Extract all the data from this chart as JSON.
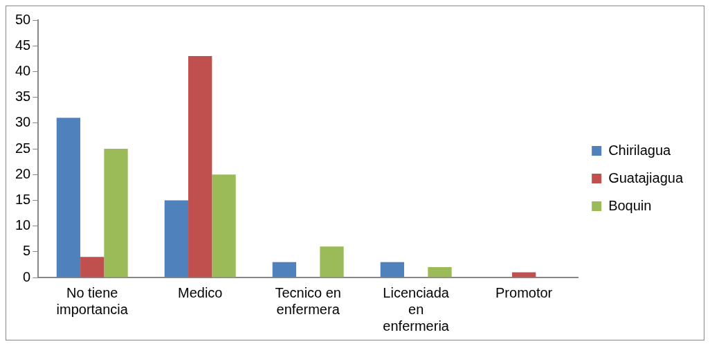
{
  "chart_data": {
    "type": "bar",
    "categories": [
      "No tiene importancia",
      "Medico",
      "Tecnico en enfermera",
      "Licenciada en enfermeria",
      "Promotor"
    ],
    "series": [
      {
        "name": "Chirilagua",
        "color": "#4f81bd",
        "values": [
          31,
          15,
          3,
          3,
          0
        ]
      },
      {
        "name": "Guatajiagua",
        "color": "#c0504d",
        "values": [
          4,
          43,
          0,
          0,
          1
        ]
      },
      {
        "name": "Boquin",
        "color": "#9bbb59",
        "values": [
          25,
          20,
          6,
          2,
          0
        ]
      }
    ],
    "ylim": [
      0,
      50
    ],
    "yticks": [
      0,
      5,
      10,
      15,
      20,
      25,
      30,
      35,
      40,
      45,
      50
    ],
    "grid": false,
    "legend": "right"
  }
}
